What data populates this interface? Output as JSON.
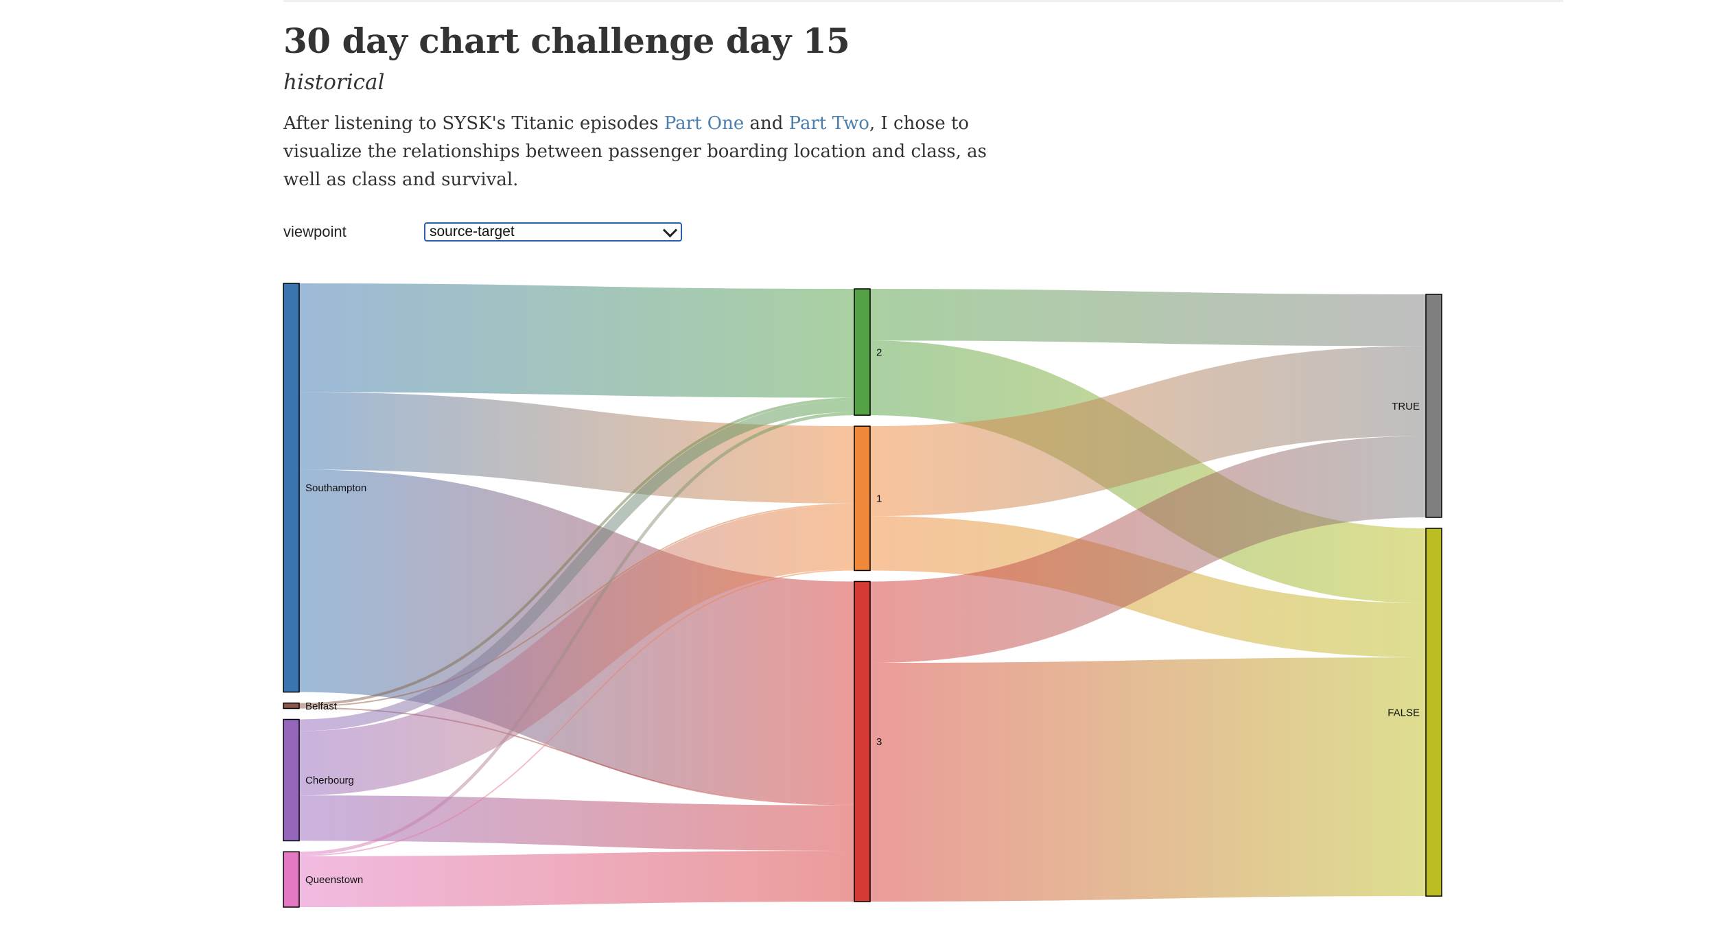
{
  "header": {
    "title": "30 day chart challenge day 15",
    "subtitle": "historical"
  },
  "intro": {
    "before": "After listening to SYSK's Titanic episodes ",
    "link1": "Part One",
    "middle": " and ",
    "link2": "Part Two",
    "after": ", I chose to visualize the relationships between passenger boarding location and class, as well as class and survival."
  },
  "control": {
    "label": "viewpoint",
    "selected": "source-target"
  },
  "chart_data": {
    "type": "sankey",
    "columns": [
      [
        "Southampton",
        "Belfast",
        "Cherbourg",
        "Queenstown"
      ],
      [
        "2",
        "1",
        "3"
      ],
      [
        "TRUE",
        "FALSE"
      ]
    ],
    "nodes": [
      {
        "name": "Southampton",
        "color": "#3a75b0"
      },
      {
        "name": "Belfast",
        "color": "#8c564b"
      },
      {
        "name": "Cherbourg",
        "color": "#9467bd"
      },
      {
        "name": "Queenstown",
        "color": "#e377c2"
      },
      {
        "name": "2",
        "color": "#55a146"
      },
      {
        "name": "1",
        "color": "#f0883a"
      },
      {
        "name": "3",
        "color": "#d63a35"
      },
      {
        "name": "TRUE",
        "color": "#7f7f7f"
      },
      {
        "name": "FALSE",
        "color": "#bcbd22"
      }
    ],
    "links": [
      {
        "source": "Southampton",
        "target": "2",
        "value": 242
      },
      {
        "source": "Southampton",
        "target": "1",
        "value": 172
      },
      {
        "source": "Southampton",
        "target": "3",
        "value": 495
      },
      {
        "source": "Belfast",
        "target": "2",
        "value": 6
      },
      {
        "source": "Belfast",
        "target": "1",
        "value": 3
      },
      {
        "source": "Belfast",
        "target": "3",
        "value": 3
      },
      {
        "source": "Cherbourg",
        "target": "2",
        "value": 26
      },
      {
        "source": "Cherbourg",
        "target": "1",
        "value": 143
      },
      {
        "source": "Cherbourg",
        "target": "3",
        "value": 101
      },
      {
        "source": "Queenstown",
        "target": "2",
        "value": 7
      },
      {
        "source": "Queenstown",
        "target": "1",
        "value": 3
      },
      {
        "source": "Queenstown",
        "target": "3",
        "value": 113
      },
      {
        "source": "2",
        "target": "TRUE",
        "value": 115
      },
      {
        "source": "2",
        "target": "FALSE",
        "value": 166
      },
      {
        "source": "1",
        "target": "TRUE",
        "value": 200
      },
      {
        "source": "1",
        "target": "FALSE",
        "value": 121
      },
      {
        "source": "3",
        "target": "TRUE",
        "value": 181
      },
      {
        "source": "3",
        "target": "FALSE",
        "value": 531
      }
    ]
  }
}
